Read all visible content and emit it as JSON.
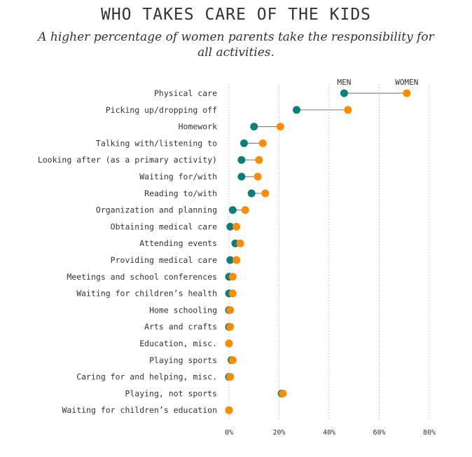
{
  "chart_data": {
    "type": "dot-plot",
    "title": "WHO TAKES CARE OF THE KIDS",
    "subtitle": "A higher percentage of women parents take the responsibility for all activities.",
    "categories": [
      "Physical care",
      "Picking up/dropping off",
      "Homework",
      "Talking with/listening to",
      "Looking after (as a primary activity)",
      "Waiting for/with",
      "Reading to/with",
      "Organization and planning",
      "Obtaining medical care",
      "Attending events",
      "Providing medical care",
      "Meetings and school conferences",
      "Waiting for children’s health",
      "Home schooling",
      "Arts and crafts",
      "Education, misc.",
      "Playing sports",
      "Caring for and helping, misc.",
      "Playing, not sports",
      "Waiting for children’s education"
    ],
    "series": [
      {
        "name": "MEN",
        "color": "#0d7f78",
        "values": [
          46,
          27,
          10,
          6,
          5,
          5,
          9,
          1.5,
          0.5,
          2.5,
          0.5,
          0,
          0,
          0,
          0,
          0,
          1,
          0,
          21,
          0
        ]
      },
      {
        "name": "WOMEN",
        "color": "#ff8c00",
        "values": [
          71,
          47.5,
          20.5,
          13.5,
          12,
          11.5,
          14.5,
          6.5,
          3,
          4.5,
          3,
          1.5,
          1.5,
          0.5,
          0.5,
          0,
          1.5,
          0.5,
          21.5,
          0
        ]
      }
    ],
    "xlim": [
      0,
      80
    ],
    "x_ticks": [
      0,
      20,
      40,
      60,
      80
    ],
    "x_tick_labels": [
      "0%",
      "20%",
      "40%",
      "60%",
      "80%"
    ],
    "grid": "vertical dotted",
    "legend": "inline labels above first row",
    "connector_color": "#888888"
  }
}
